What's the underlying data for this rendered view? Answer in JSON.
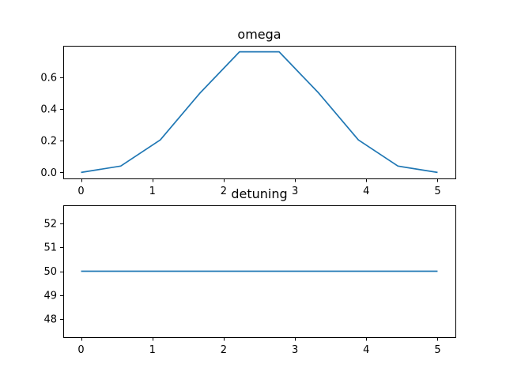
{
  "chart_data": [
    {
      "type": "line",
      "title": "omega",
      "xlim": [
        -0.25,
        5.25
      ],
      "ylim": [
        -0.038,
        0.798
      ],
      "xticks": [
        0,
        1,
        2,
        3,
        4,
        5
      ],
      "xtick_labels": [
        "0",
        "1",
        "2",
        "3",
        "4",
        "5"
      ],
      "yticks": [
        0.0,
        0.2,
        0.4,
        0.6
      ],
      "ytick_labels": [
        "0.0",
        "0.2",
        "0.4",
        "0.6"
      ],
      "grid": false,
      "series": [
        {
          "color": "#1f77b4",
          "x": [
            0,
            0.556,
            1.111,
            1.667,
            2.222,
            2.778,
            3.333,
            3.889,
            4.444,
            5.0
          ],
          "y": [
            0.0,
            0.04,
            0.205,
            0.5,
            0.76,
            0.76,
            0.5,
            0.205,
            0.04,
            0.0
          ]
        }
      ]
    },
    {
      "type": "line",
      "title": "detuning",
      "xlim": [
        -0.25,
        5.25
      ],
      "ylim": [
        47.25,
        52.75
      ],
      "xticks": [
        0,
        1,
        2,
        3,
        4,
        5
      ],
      "xtick_labels": [
        "0",
        "1",
        "2",
        "3",
        "4",
        "5"
      ],
      "yticks": [
        48,
        49,
        50,
        51,
        52
      ],
      "ytick_labels": [
        "48",
        "49",
        "50",
        "51",
        "52"
      ],
      "grid": false,
      "series": [
        {
          "color": "#1f77b4",
          "x": [
            0,
            0.556,
            1.111,
            1.667,
            2.222,
            2.778,
            3.333,
            3.889,
            4.444,
            5.0
          ],
          "y": [
            50,
            50,
            50,
            50,
            50,
            50,
            50,
            50,
            50,
            50
          ]
        }
      ]
    }
  ]
}
